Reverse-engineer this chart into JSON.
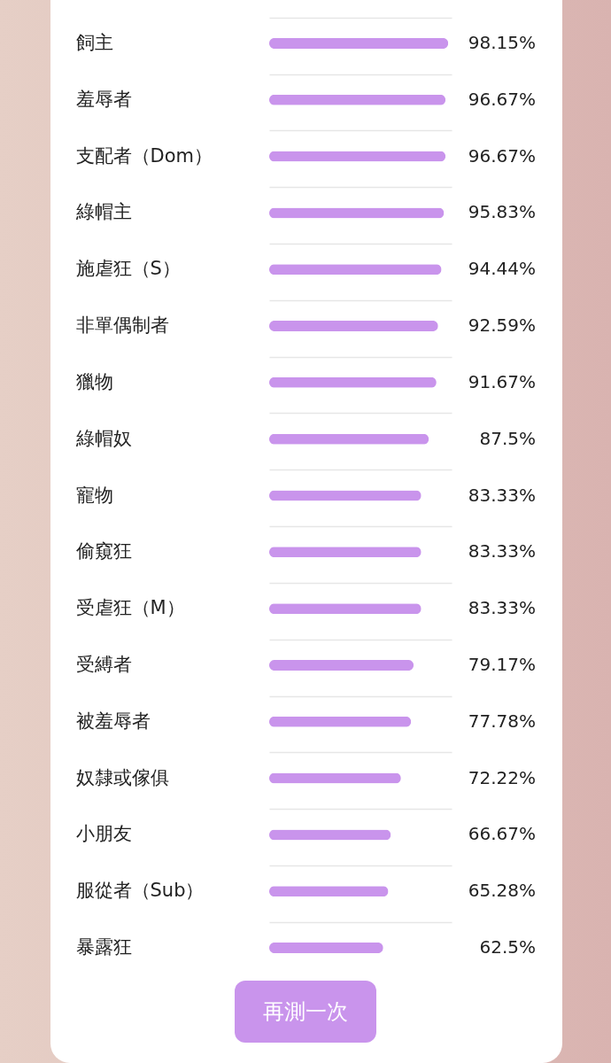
{
  "chart_data": {
    "type": "bar",
    "orientation": "horizontal",
    "categories": [
      "飼主",
      "羞辱者",
      "支配者（Dom）",
      "綠帽主",
      "施虐狂（S）",
      "非單偶制者",
      "獵物",
      "綠帽奴",
      "寵物",
      "偷窺狂",
      "受虐狂（M）",
      "受縛者",
      "被羞辱者",
      "奴隸或傢俱",
      "小朋友",
      "服從者（Sub）",
      "暴露狂"
    ],
    "values": [
      98.15,
      96.67,
      96.67,
      95.83,
      94.44,
      92.59,
      91.67,
      87.5,
      83.33,
      83.33,
      83.33,
      79.17,
      77.78,
      72.22,
      66.67,
      65.28,
      62.5
    ],
    "value_labels": [
      "98.15%",
      "96.67%",
      "96.67%",
      "95.83%",
      "94.44%",
      "92.59%",
      "91.67%",
      "87.5%",
      "83.33%",
      "83.33%",
      "83.33%",
      "79.17%",
      "77.78%",
      "72.22%",
      "66.67%",
      "65.28%",
      "62.5%"
    ],
    "color": "#c994ec",
    "xlim": [
      0,
      100
    ],
    "tick_labels": "y",
    "grid": "y",
    "annotations": [
      "再測一次"
    ]
  }
}
